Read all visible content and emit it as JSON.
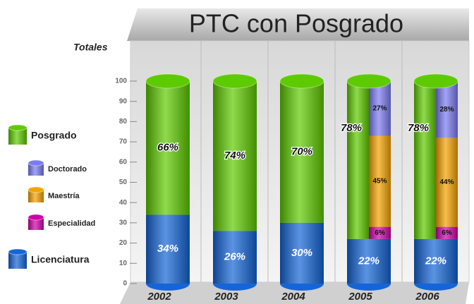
{
  "chart_data": {
    "type": "cylinder-stacked-bar",
    "title": "PTC con Posgrado",
    "ylabel": "Totales",
    "categories": [
      "2002",
      "2003",
      "2004",
      "2005",
      "2006"
    ],
    "ylim": [
      0,
      100
    ],
    "yticks": [
      0,
      10,
      20,
      30,
      40,
      50,
      60,
      70,
      80,
      90,
      100
    ],
    "grid": false,
    "series": [
      {
        "name": "Licenciatura",
        "color": "#1565d8",
        "values": [
          34,
          26,
          30,
          22,
          22
        ],
        "value_labels": [
          "34%",
          "26%",
          "30%",
          "22%",
          "22%"
        ]
      },
      {
        "name": "Posgrado",
        "color": "#5ecb00",
        "values": [
          66,
          74,
          70,
          78,
          78
        ],
        "value_labels": [
          "66%",
          "74%",
          "70%",
          "78%",
          "78%"
        ],
        "breakdown": [
          {
            "name": "Especialidad",
            "color": "#d100a8",
            "values": [
              null,
              null,
              null,
              6,
              6
            ],
            "value_labels": [
              null,
              null,
              null,
              "6%",
              "6%"
            ]
          },
          {
            "name": "Maestría",
            "color": "#f5a300",
            "values": [
              null,
              null,
              null,
              45,
              44
            ],
            "value_labels": [
              null,
              null,
              null,
              "45%",
              "44%"
            ]
          },
          {
            "name": "Doctorado",
            "color": "#7b7cf2",
            "values": [
              null,
              null,
              null,
              27,
              28
            ],
            "value_labels": [
              null,
              null,
              null,
              "27%",
              "28%"
            ]
          }
        ]
      }
    ]
  }
}
